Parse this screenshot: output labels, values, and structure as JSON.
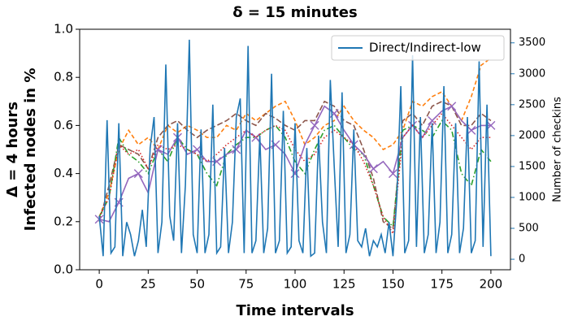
{
  "chart_data": {
    "type": "line",
    "title": "δ = 15 minutes",
    "xlabel": "Time intervals",
    "ylabel": [
      "Δ = 4 hours",
      "Infected nodes in %"
    ],
    "y2label": "Number of checkins",
    "xlim": [
      -10,
      210
    ],
    "xticks": [
      0,
      25,
      50,
      75,
      100,
      125,
      150,
      175,
      200
    ],
    "ylim": [
      0,
      1
    ],
    "yticks": [
      {
        "value": 0,
        "label": "0.0"
      },
      {
        "value": 0.2,
        "label": "0.2"
      },
      {
        "value": 0.4,
        "label": "0.4"
      },
      {
        "value": 0.6,
        "label": "0.6"
      },
      {
        "value": 0.8,
        "label": "0.8"
      },
      {
        "value": 1,
        "label": "1.0"
      }
    ],
    "y2lim": [
      -170,
      3720
    ],
    "y2ticks": [
      0,
      500,
      1000,
      1500,
      2000,
      2500,
      3000,
      3500
    ],
    "y2color": "#1f77b4",
    "legend": "upper right",
    "x": [
      0,
      5,
      10,
      15,
      20,
      25,
      30,
      35,
      40,
      45,
      50,
      55,
      60,
      65,
      70,
      75,
      80,
      85,
      90,
      95,
      100,
      105,
      110,
      115,
      120,
      125,
      130,
      135,
      140,
      145,
      150,
      155,
      160,
      165,
      170,
      175,
      180,
      185,
      190,
      195,
      200
    ],
    "series": [
      {
        "name": "Direct/Indirect-low",
        "color": "#1f77b4",
        "axis": "y2",
        "linestyle": "solid",
        "x": [
          0,
          2,
          4,
          6,
          8,
          10,
          12,
          14,
          16,
          18,
          20,
          22,
          24,
          26,
          28,
          30,
          32,
          34,
          36,
          38,
          40,
          42,
          44,
          46,
          48,
          50,
          52,
          54,
          56,
          58,
          60,
          62,
          64,
          66,
          68,
          70,
          72,
          74,
          76,
          78,
          80,
          82,
          84,
          86,
          88,
          90,
          92,
          94,
          96,
          98,
          100,
          102,
          104,
          106,
          108,
          110,
          112,
          114,
          116,
          118,
          120,
          122,
          124,
          126,
          128,
          130,
          132,
          134,
          136,
          138,
          140,
          142,
          144,
          146,
          148,
          150,
          152,
          154,
          156,
          158,
          160,
          162,
          164,
          166,
          168,
          170,
          172,
          174,
          176,
          178,
          180,
          182,
          184,
          186,
          188,
          190,
          192,
          194,
          196,
          198,
          200
        ],
        "values": [
          700,
          50,
          2250,
          100,
          200,
          2200,
          50,
          600,
          400,
          50,
          300,
          800,
          200,
          1800,
          2300,
          100,
          600,
          3150,
          700,
          300,
          2200,
          100,
          1200,
          3550,
          400,
          100,
          2100,
          100,
          400,
          2500,
          100,
          200,
          1800,
          100,
          600,
          2300,
          2600,
          100,
          3450,
          100,
          300,
          2000,
          100,
          500,
          3000,
          100,
          300,
          2400,
          100,
          200,
          2200,
          300,
          100,
          1800,
          50,
          100,
          2000,
          600,
          100,
          2900,
          1500,
          200,
          2700,
          100,
          400,
          2100,
          300,
          200,
          500,
          50,
          300,
          200,
          400,
          100,
          600,
          50,
          1000,
          2800,
          100,
          300,
          3300,
          200,
          2300,
          100,
          400,
          2200,
          100,
          600,
          2800,
          100,
          400,
          2200,
          100,
          500,
          2300,
          100,
          300,
          3200,
          200,
          2500,
          50
        ]
      },
      {
        "color": "#ff7f0e",
        "linestyle": "dashed",
        "values": [
          0.22,
          0.32,
          0.5,
          0.58,
          0.52,
          0.55,
          0.5,
          0.6,
          0.57,
          0.6,
          0.58,
          0.55,
          0.55,
          0.6,
          0.58,
          0.65,
          0.62,
          0.65,
          0.68,
          0.7,
          0.62,
          0.52,
          0.55,
          0.6,
          0.62,
          0.68,
          0.62,
          0.58,
          0.55,
          0.5,
          0.52,
          0.58,
          0.7,
          0.68,
          0.72,
          0.74,
          0.68,
          0.62,
          0.72,
          0.85,
          0.88
        ]
      },
      {
        "color": "#8c564b",
        "linestyle": "longdash",
        "values": [
          0.2,
          0.35,
          0.52,
          0.5,
          0.48,
          0.42,
          0.55,
          0.6,
          0.62,
          0.58,
          0.55,
          0.58,
          0.6,
          0.62,
          0.65,
          0.62,
          0.6,
          0.65,
          0.63,
          0.6,
          0.58,
          0.62,
          0.62,
          0.7,
          0.68,
          0.62,
          0.6,
          0.5,
          0.38,
          0.2,
          0.17,
          0.62,
          0.65,
          0.6,
          0.68,
          0.7,
          0.68,
          0.6,
          0.6,
          0.65,
          0.62
        ]
      },
      {
        "color": "#2ca02c",
        "linestyle": "dashdot",
        "values": [
          0.22,
          0.3,
          0.55,
          0.48,
          0.45,
          0.4,
          0.5,
          0.45,
          0.55,
          0.5,
          0.48,
          0.4,
          0.35,
          0.48,
          0.52,
          0.55,
          0.55,
          0.58,
          0.6,
          0.55,
          0.45,
          0.4,
          0.5,
          0.58,
          0.6,
          0.55,
          0.5,
          0.48,
          0.35,
          0.22,
          0.18,
          0.58,
          0.6,
          0.58,
          0.55,
          0.62,
          0.58,
          0.4,
          0.35,
          0.5,
          0.45
        ]
      },
      {
        "color": "#9467bd",
        "linestyle": "solid",
        "marker": "x",
        "values": [
          0.21,
          0.2,
          0.28,
          0.38,
          0.4,
          0.32,
          0.5,
          0.48,
          0.55,
          0.48,
          0.5,
          0.45,
          0.45,
          0.48,
          0.5,
          0.58,
          0.55,
          0.5,
          0.52,
          0.48,
          0.4,
          0.52,
          0.6,
          0.68,
          0.65,
          0.58,
          0.52,
          0.48,
          0.42,
          0.45,
          0.4,
          0.55,
          0.6,
          0.55,
          0.62,
          0.66,
          0.68,
          0.62,
          0.58,
          0.6,
          0.6
        ]
      },
      {
        "color": "#d62728",
        "linestyle": "dotted",
        "values": [
          0.22,
          0.3,
          0.52,
          0.48,
          0.5,
          0.42,
          0.52,
          0.5,
          0.52,
          0.5,
          0.48,
          0.45,
          0.48,
          0.52,
          0.55,
          0.58,
          0.55,
          0.58,
          0.6,
          0.58,
          0.5,
          0.45,
          0.48,
          0.55,
          0.58,
          0.55,
          0.52,
          0.45,
          0.35,
          0.22,
          0.15,
          0.55,
          0.6,
          0.55,
          0.6,
          0.65,
          0.6,
          0.55,
          0.5,
          0.55,
          0.55
        ]
      }
    ]
  }
}
